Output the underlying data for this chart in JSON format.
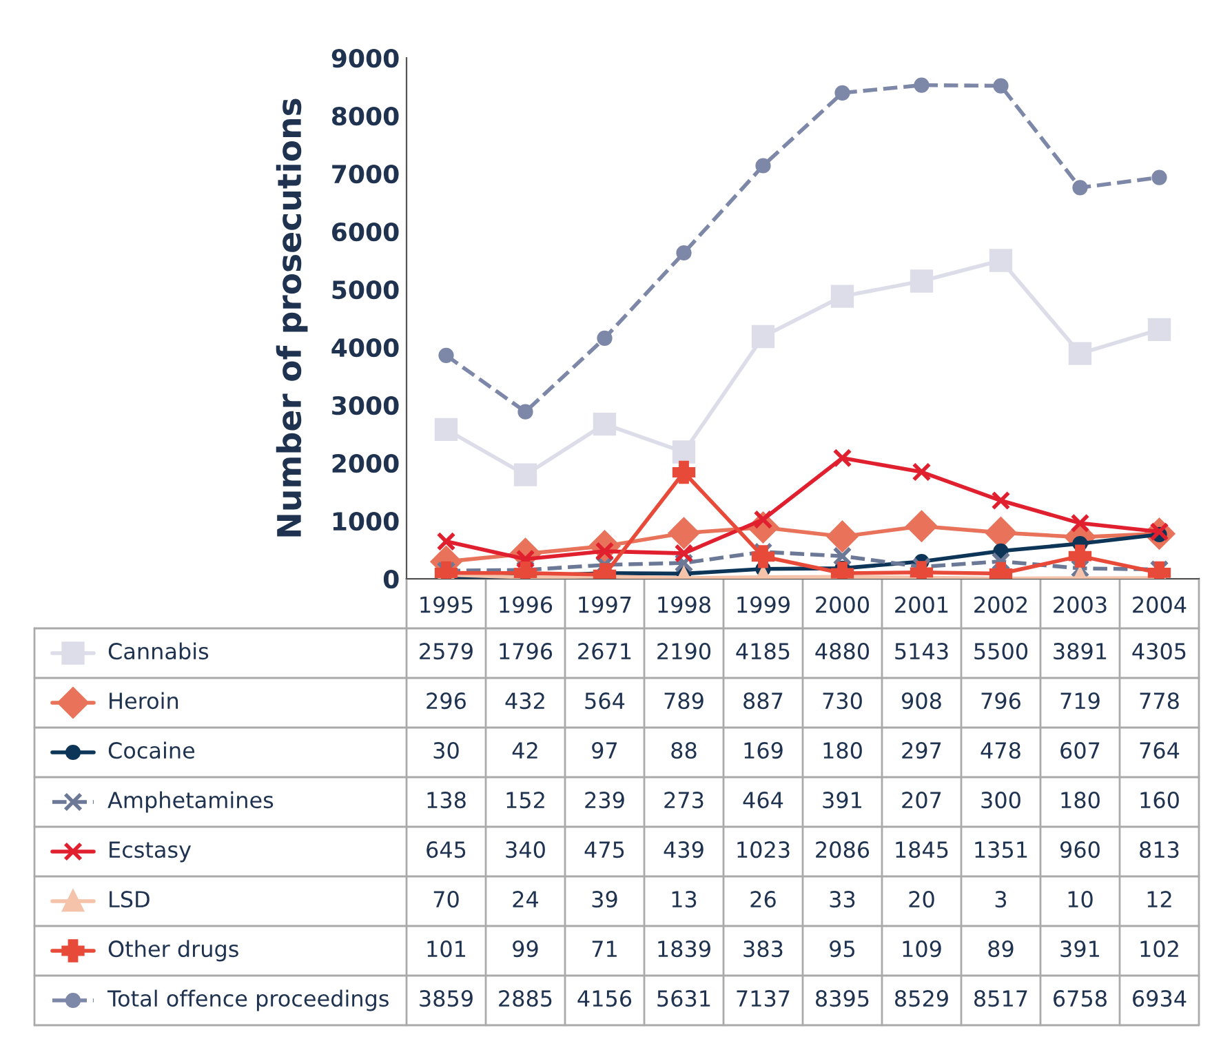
{
  "chart_data": {
    "type": "line",
    "ylabel": "Number of prosecutions",
    "categories": [
      "1995",
      "1996",
      "1997",
      "1998",
      "1999",
      "2000",
      "2001",
      "2002",
      "2003",
      "2004"
    ],
    "ylim": [
      0,
      9000
    ],
    "yticks": [
      0,
      1000,
      2000,
      3000,
      4000,
      5000,
      6000,
      7000,
      8000,
      9000
    ],
    "grid": false,
    "data_labels": true,
    "legend": "bottom",
    "series": [
      {
        "name": "Cannabis",
        "color": "#dcdde9",
        "marker": "square",
        "line_style": "solid",
        "values": [
          2579,
          1796,
          2671,
          2190,
          4185,
          4880,
          5143,
          5500,
          3891,
          4305
        ]
      },
      {
        "name": "Heroin",
        "color": "#e8735a",
        "marker": "diamond",
        "line_style": "solid",
        "values": [
          296,
          432,
          564,
          789,
          887,
          730,
          908,
          796,
          719,
          778
        ]
      },
      {
        "name": "Cocaine",
        "color": "#0d3558",
        "marker": "circle",
        "line_style": "solid",
        "values": [
          30,
          42,
          97,
          88,
          169,
          180,
          297,
          478,
          607,
          764
        ]
      },
      {
        "name": "Amphetamines",
        "color": "#6b7896",
        "marker": "cross",
        "line_style": "dashed",
        "values": [
          138,
          152,
          239,
          273,
          464,
          391,
          207,
          300,
          180,
          160
        ]
      },
      {
        "name": "Ecstasy",
        "color": "#e0202f",
        "marker": "cross",
        "line_style": "solid",
        "values": [
          645,
          340,
          475,
          439,
          1023,
          2086,
          1845,
          1351,
          960,
          813
        ]
      },
      {
        "name": "LSD",
        "color": "#f5c2aa",
        "marker": "triangle",
        "line_style": "solid",
        "values": [
          70,
          24,
          39,
          13,
          26,
          33,
          20,
          3,
          10,
          12
        ]
      },
      {
        "name": "Other drugs",
        "color": "#e84a3a",
        "marker": "plus",
        "line_style": "solid",
        "values": [
          101,
          99,
          71,
          1839,
          383,
          95,
          109,
          89,
          391,
          102
        ]
      },
      {
        "name": "Total offence proceedings",
        "color": "#7d87a8",
        "marker": "circle",
        "line_style": "dashed",
        "values": [
          3859,
          2885,
          4156,
          5631,
          7137,
          8395,
          8529,
          8517,
          6758,
          6934
        ]
      }
    ]
  }
}
